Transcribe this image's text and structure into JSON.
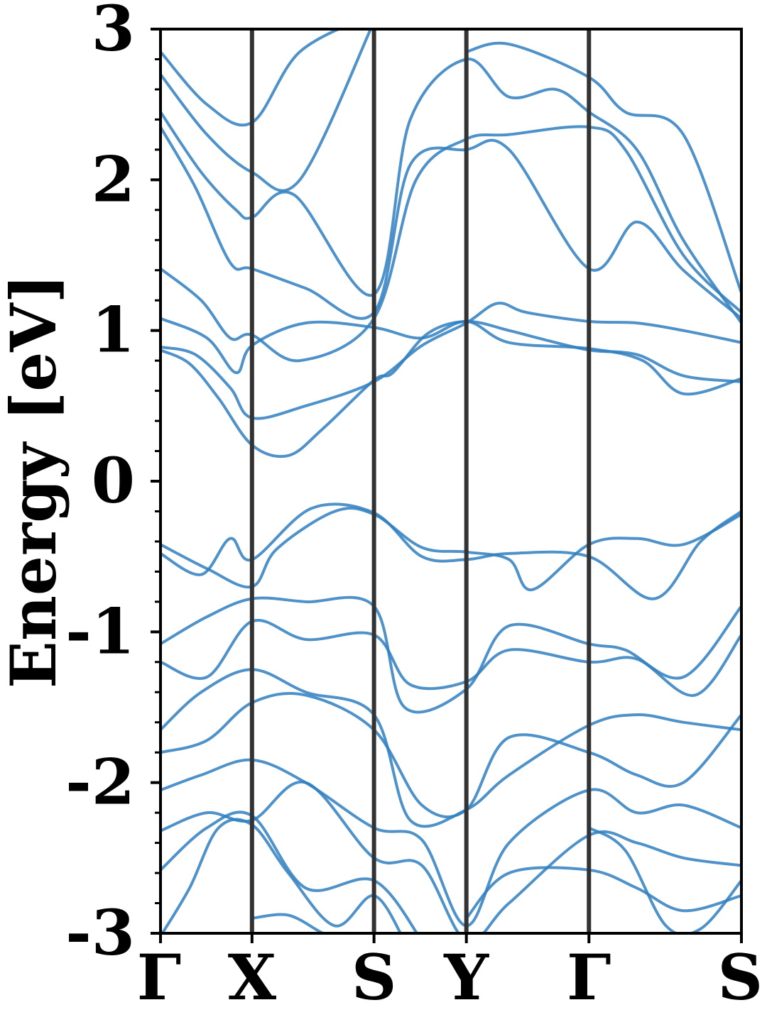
{
  "chart_data": {
    "type": "line",
    "title": "",
    "xlabel": "",
    "ylabel": "Energy [eV]",
    "ylim": [
      -3,
      3
    ],
    "y_ticks": [
      "-3",
      "-2",
      "-1",
      "0",
      "1",
      "2",
      "3"
    ],
    "y_tick_values": [
      -3,
      -2,
      -1,
      0,
      1,
      2,
      3
    ],
    "minor_y_step": 0.2,
    "k_path": [
      "Γ",
      "X",
      "S",
      "Y",
      "Γ",
      "S"
    ],
    "k_positions": [
      0,
      0.1575,
      0.3675,
      0.5265,
      0.7375,
      1.0
    ],
    "high_symmetry_lines": true,
    "grid": false,
    "colors": {
      "bands": "#2f7fbf",
      "symmetry_lines": "#333333",
      "axes": "#000000"
    },
    "series": [
      {
        "values": [
          [
            0,
            0.87
          ],
          [
            0.05,
            0.78
          ],
          [
            0.1,
            0.55
          ],
          [
            0.1575,
            0.24
          ],
          [
            0.22,
            0.17
          ],
          [
            0.28,
            0.35
          ],
          [
            0.3675,
            0.67
          ],
          [
            0.4,
            0.72
          ],
          [
            0.46,
            0.98
          ],
          [
            0.5265,
            1.06
          ],
          [
            0.6,
            1.0
          ],
          [
            0.65,
            0.95
          ],
          [
            0.7375,
            0.87
          ],
          [
            0.82,
            0.84
          ],
          [
            0.9,
            0.7
          ],
          [
            1.0,
            0.66
          ]
        ]
      },
      {
        "values": [
          [
            0,
            0.89
          ],
          [
            0.06,
            0.84
          ],
          [
            0.12,
            0.62
          ],
          [
            0.1575,
            0.42
          ],
          [
            0.25,
            0.5
          ],
          [
            0.3675,
            0.66
          ],
          [
            0.45,
            0.9
          ],
          [
            0.5265,
            1.05
          ],
          [
            0.58,
            1.18
          ],
          [
            0.63,
            1.12
          ],
          [
            0.7375,
            1.06
          ],
          [
            0.82,
            1.05
          ],
          [
            0.9,
            1.0
          ],
          [
            1.0,
            0.92
          ]
        ]
      },
      {
        "values": [
          [
            0,
            1.08
          ],
          [
            0.08,
            0.95
          ],
          [
            0.13,
            0.72
          ],
          [
            0.1575,
            0.9
          ],
          [
            0.25,
            1.05
          ],
          [
            0.3675,
            1.02
          ],
          [
            0.45,
            0.95
          ],
          [
            0.5265,
            1.06
          ],
          [
            0.6,
            0.92
          ],
          [
            0.7375,
            0.88
          ],
          [
            0.83,
            0.8
          ],
          [
            0.9,
            0.58
          ],
          [
            1.0,
            0.68
          ]
        ]
      },
      {
        "values": [
          [
            0,
            1.41
          ],
          [
            0.07,
            1.2
          ],
          [
            0.12,
            0.95
          ],
          [
            0.1575,
            0.97
          ],
          [
            0.24,
            0.8
          ],
          [
            0.3675,
            1.08
          ],
          [
            0.44,
            2.0
          ],
          [
            0.5265,
            2.27
          ],
          [
            0.6,
            2.3
          ],
          [
            0.7375,
            2.35
          ],
          [
            0.8,
            2.2
          ],
          [
            0.9,
            1.5
          ],
          [
            1.0,
            1.12
          ]
        ]
      },
      {
        "values": [
          [
            0,
            2.35
          ],
          [
            0.06,
            1.95
          ],
          [
            0.12,
            1.45
          ],
          [
            0.1575,
            1.41
          ],
          [
            0.25,
            1.28
          ],
          [
            0.3675,
            1.12
          ],
          [
            0.43,
            2.1
          ],
          [
            0.5265,
            2.2
          ],
          [
            0.6,
            2.2
          ],
          [
            0.7375,
            1.41
          ],
          [
            0.82,
            1.72
          ],
          [
            0.9,
            1.4
          ],
          [
            1.0,
            1.08
          ]
        ]
      },
      {
        "values": [
          [
            0,
            2.45
          ],
          [
            0.07,
            2.05
          ],
          [
            0.13,
            1.8
          ],
          [
            0.1575,
            1.75
          ],
          [
            0.23,
            1.9
          ],
          [
            0.3675,
            1.24
          ],
          [
            0.43,
            2.4
          ],
          [
            0.5265,
            2.8
          ],
          [
            0.6,
            2.55
          ],
          [
            0.68,
            2.6
          ],
          [
            0.7375,
            2.45
          ],
          [
            0.82,
            2.2
          ],
          [
            0.9,
            1.6
          ],
          [
            1.0,
            1.05
          ]
        ]
      },
      {
        "values": [
          [
            0,
            2.7
          ],
          [
            0.08,
            2.3
          ],
          [
            0.1575,
            2.05
          ],
          [
            0.24,
            2.0
          ],
          [
            0.3675,
            3.05
          ]
        ]
      },
      {
        "values": [
          [
            0,
            2.85
          ],
          [
            0.08,
            2.5
          ],
          [
            0.1575,
            2.38
          ],
          [
            0.24,
            2.85
          ],
          [
            0.3675,
            3.1
          ]
        ]
      },
      {
        "values": [
          [
            0.5265,
            2.85
          ],
          [
            0.6,
            2.9
          ],
          [
            0.7375,
            2.68
          ],
          [
            0.8,
            2.45
          ],
          [
            0.9,
            2.3
          ],
          [
            1.0,
            1.25
          ]
        ]
      },
      {
        "values": [
          [
            0,
            -0.42
          ],
          [
            0.08,
            -0.58
          ],
          [
            0.1575,
            -0.7
          ],
          [
            0.2,
            -0.45
          ],
          [
            0.3,
            -0.2
          ],
          [
            0.3675,
            -0.22
          ],
          [
            0.45,
            -0.44
          ],
          [
            0.5265,
            -0.47
          ],
          [
            0.6,
            -0.52
          ],
          [
            0.64,
            -0.72
          ],
          [
            0.7375,
            -0.42
          ],
          [
            0.82,
            -0.38
          ],
          [
            0.9,
            -0.42
          ],
          [
            1.0,
            -0.22
          ]
        ]
      },
      {
        "values": [
          [
            0,
            -0.48
          ],
          [
            0.07,
            -0.62
          ],
          [
            0.12,
            -0.38
          ],
          [
            0.1575,
            -0.52
          ],
          [
            0.26,
            -0.18
          ],
          [
            0.3675,
            -0.21
          ],
          [
            0.45,
            -0.5
          ],
          [
            0.5265,
            -0.52
          ],
          [
            0.6,
            -0.48
          ],
          [
            0.7375,
            -0.5
          ],
          [
            0.85,
            -0.78
          ],
          [
            0.93,
            -0.4
          ],
          [
            1.0,
            -0.2
          ]
        ]
      },
      {
        "values": [
          [
            0,
            -1.08
          ],
          [
            0.08,
            -0.9
          ],
          [
            0.1575,
            -0.78
          ],
          [
            0.25,
            -0.8
          ],
          [
            0.3675,
            -0.83
          ],
          [
            0.42,
            -1.5
          ],
          [
            0.5265,
            -1.38
          ],
          [
            0.6,
            -0.96
          ],
          [
            0.7375,
            -1.08
          ],
          [
            0.8,
            -1.12
          ],
          [
            0.9,
            -1.3
          ],
          [
            1.0,
            -0.83
          ]
        ]
      },
      {
        "values": [
          [
            0,
            -1.2
          ],
          [
            0.08,
            -1.3
          ],
          [
            0.1575,
            -0.93
          ],
          [
            0.25,
            -1.05
          ],
          [
            0.3675,
            -1.02
          ],
          [
            0.43,
            -1.35
          ],
          [
            0.5265,
            -1.33
          ],
          [
            0.6,
            -1.12
          ],
          [
            0.7375,
            -1.2
          ],
          [
            0.82,
            -1.18
          ],
          [
            0.92,
            -1.42
          ],
          [
            1.0,
            -1.02
          ]
        ]
      },
      {
        "values": [
          [
            0,
            -1.65
          ],
          [
            0.07,
            -1.4
          ],
          [
            0.1575,
            -1.25
          ],
          [
            0.25,
            -1.4
          ],
          [
            0.3675,
            -1.55
          ],
          [
            0.43,
            -2.25
          ],
          [
            0.5265,
            -2.18
          ],
          [
            0.6,
            -1.95
          ],
          [
            0.7375,
            -1.62
          ],
          [
            0.82,
            -1.55
          ],
          [
            0.9,
            -1.6
          ],
          [
            1.0,
            -1.65
          ]
        ]
      },
      {
        "values": [
          [
            0,
            -1.8
          ],
          [
            0.08,
            -1.72
          ],
          [
            0.1575,
            -1.47
          ],
          [
            0.25,
            -1.42
          ],
          [
            0.3675,
            -1.65
          ],
          [
            0.45,
            -2.15
          ],
          [
            0.5265,
            -2.18
          ],
          [
            0.6,
            -1.7
          ],
          [
            0.7375,
            -1.8
          ],
          [
            0.82,
            -1.95
          ],
          [
            0.9,
            -2.0
          ],
          [
            1.0,
            -1.55
          ]
        ]
      },
      {
        "values": [
          [
            0,
            -2.05
          ],
          [
            0.07,
            -1.95
          ],
          [
            0.1575,
            -1.85
          ],
          [
            0.25,
            -2.0
          ],
          [
            0.3675,
            -2.3
          ],
          [
            0.45,
            -2.38
          ],
          [
            0.5265,
            -2.95
          ],
          [
            0.6,
            -2.4
          ],
          [
            0.7375,
            -2.05
          ],
          [
            0.82,
            -2.2
          ],
          [
            0.9,
            -2.15
          ],
          [
            1.0,
            -2.3
          ]
        ]
      },
      {
        "values": [
          [
            0,
            -2.32
          ],
          [
            0.08,
            -2.2
          ],
          [
            0.1575,
            -2.25
          ],
          [
            0.25,
            -2.0
          ],
          [
            0.3675,
            -2.5
          ],
          [
            0.45,
            -2.55
          ],
          [
            0.5265,
            -3.05
          ],
          [
            0.6,
            -2.8
          ],
          [
            0.7375,
            -2.35
          ],
          [
            0.82,
            -2.4
          ],
          [
            0.9,
            -2.5
          ],
          [
            1.0,
            -2.55
          ]
        ]
      },
      {
        "values": [
          [
            0,
            -2.58
          ],
          [
            0.08,
            -2.3
          ],
          [
            0.1575,
            -2.22
          ],
          [
            0.25,
            -2.7
          ],
          [
            0.3675,
            -2.65
          ],
          [
            0.45,
            -3.05
          ]
        ]
      },
      {
        "values": [
          [
            0.5265,
            -2.9
          ],
          [
            0.6,
            -2.6
          ],
          [
            0.7375,
            -2.58
          ],
          [
            0.82,
            -2.7
          ],
          [
            0.9,
            -2.85
          ],
          [
            1.0,
            -2.75
          ]
        ]
      },
      {
        "values": [
          [
            0,
            -3.02
          ],
          [
            0.05,
            -2.7
          ],
          [
            0.1,
            -2.3
          ],
          [
            0.1575,
            -2.28
          ],
          [
            0.22,
            -2.6
          ],
          [
            0.3,
            -2.95
          ],
          [
            0.3675,
            -2.75
          ],
          [
            0.42,
            -3.05
          ]
        ]
      },
      {
        "values": [
          [
            0.1575,
            -2.9
          ],
          [
            0.22,
            -2.88
          ],
          [
            0.28,
            -3.0
          ],
          [
            0.32,
            -3.05
          ]
        ]
      },
      {
        "values": [
          [
            0.7375,
            -2.3
          ],
          [
            0.8,
            -2.45
          ],
          [
            0.87,
            -2.95
          ],
          [
            0.93,
            -2.97
          ],
          [
            1.0,
            -2.65
          ]
        ]
      }
    ]
  }
}
